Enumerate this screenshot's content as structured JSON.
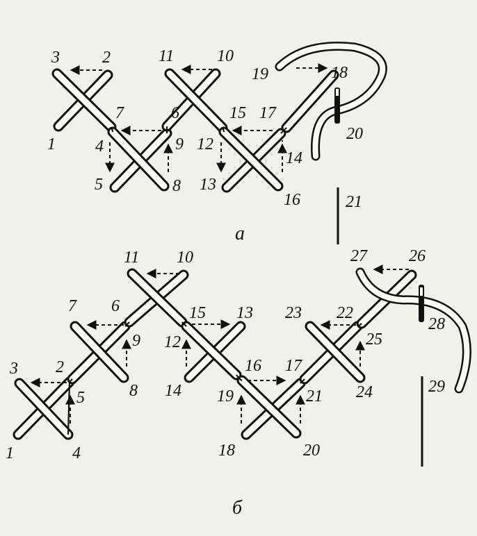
{
  "figure_a": {
    "caption": "а",
    "labels": [
      "1",
      "2",
      "3",
      "4",
      "5",
      "6",
      "7",
      "8",
      "9",
      "10",
      "11",
      "12",
      "13",
      "14",
      "15",
      "16",
      "17",
      "18",
      "19",
      "20",
      "21"
    ]
  },
  "figure_b": {
    "caption": "б",
    "labels": [
      "1",
      "2",
      "3",
      "4",
      "5",
      "6",
      "7",
      "8",
      "9",
      "10",
      "11",
      "12",
      "13",
      "14",
      "15",
      "16",
      "17",
      "18",
      "19",
      "20",
      "21",
      "22",
      "23",
      "24",
      "25",
      "26",
      "27",
      "28",
      "29"
    ]
  },
  "colors": {
    "ink": "#111111",
    "paper": "#f2f0ea",
    "thread": "#fbfaf6"
  }
}
